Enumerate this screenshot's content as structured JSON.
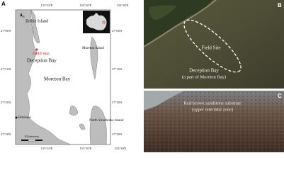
{
  "panels": {
    "a": {
      "label": "A",
      "longitudes": [
        "153°10'E",
        "153°20'E",
        "153°30'E"
      ],
      "latitudes": [
        "27°00'S",
        "27°10'S",
        "27°20'S",
        "27°30'S"
      ],
      "places": {
        "bribie": "Bribie Island",
        "field_site": "Field Site",
        "deception": "Deception Bay",
        "moreton_bay": "Moreton Bay",
        "moreton_island": "Moreton Island",
        "stradbroke": "North Stradbroke Island",
        "brisbane": "Brisbane"
      },
      "north": "N",
      "scale_unit": "Kilometers"
    },
    "b": {
      "label": "B",
      "field_site": "Field Site",
      "bay": "Deception Bay",
      "bay_note": "(a part of Moreton Bay)"
    },
    "c": {
      "label": "C",
      "substrate": "Red-brown sandstone substrate",
      "substrate_note": "(upper intertidal zone)"
    }
  }
}
